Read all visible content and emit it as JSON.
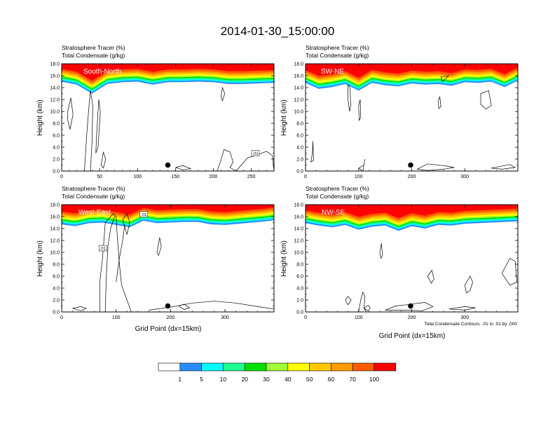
{
  "title": "2014-01-30_15:00:00",
  "colors": {
    "band_red": "#ff0000",
    "band_orange": "#ff5a00",
    "band_amber": "#ff9a00",
    "band_gold": "#ffc800",
    "band_yellow": "#ffff00",
    "band_lime": "#a0ff30",
    "band_green": "#00e000",
    "band_teal": "#20ff90",
    "band_cyan": "#00ffff",
    "band_blue": "#2a8cff",
    "contour": "#000000"
  },
  "colorbar": {
    "colors": [
      "#ffffff",
      "#2a8cff",
      "#00ffff",
      "#20ff90",
      "#00e000",
      "#a0ff30",
      "#ffff00",
      "#ffc800",
      "#ff9a00",
      "#ff5a00",
      "#ff0000"
    ],
    "labels": [
      "1",
      "5",
      "10",
      "20",
      "30",
      "40",
      "50",
      "60",
      "70",
      "100"
    ]
  },
  "footnote": "Total Condensate Contours: .01 to .01 by .000",
  "panels": [
    {
      "tracer_label": "Stratosphere Tracer   (%)",
      "condensate_label": "Total Condensate   (g/kg)",
      "section_label": "South-North",
      "ylabel": "Height (km)",
      "xlabel": "",
      "yticks": [
        "0.0",
        "2.0",
        "4.0",
        "6.0",
        "8.0",
        "10.0",
        "12.0",
        "14.0",
        "16.0",
        "18.0"
      ],
      "xticks": [
        "0",
        "50",
        "100",
        "150",
        "200",
        "250"
      ],
      "contour_labels": [
        ".01"
      ]
    },
    {
      "tracer_label": "Stratosphere Tracer   (%)",
      "condensate_label": "Total Condensate   (g/kg)",
      "section_label": "SW-NE",
      "ylabel": "Height (km)",
      "xlabel": "",
      "yticks": [
        "0.0",
        "2.0",
        "4.0",
        "6.0",
        "8.0",
        "10.0",
        "12.0",
        "14.0",
        "16.0",
        "18.0"
      ],
      "xticks": [
        "0",
        "100",
        "200",
        "300"
      ],
      "contour_labels": []
    },
    {
      "tracer_label": "Stratosphere Tracer   (%)",
      "condensate_label": "Total Condensate   (g/kg)",
      "section_label": "West-East",
      "ylabel": "Height (km)",
      "xlabel": "Grid Point (dx=15km)",
      "yticks": [
        "0.0",
        "2.0",
        "4.0",
        "6.0",
        "8.0",
        "10.0",
        "12.0",
        "14.0",
        "16.0",
        "18.0"
      ],
      "xticks": [
        "0",
        "100",
        "200",
        "300"
      ],
      "contour_labels": [
        ".01",
        ".01"
      ]
    },
    {
      "tracer_label": "Stratosphere Tracer   (%)",
      "condensate_label": "Total Condensate   (g/kg)",
      "section_label": "NW-SE",
      "ylabel": "Height (km)",
      "xlabel": "Grid Point (dx=15km)",
      "yticks": [
        "0.0",
        "2.0",
        "4.0",
        "6.0",
        "8.0",
        "10.0",
        "12.0",
        "14.0",
        "16.0",
        "18.0"
      ],
      "xticks": [
        "0",
        "100",
        "200",
        "300"
      ],
      "contour_labels": []
    }
  ],
  "chart_data": [
    {
      "type": "heatmap",
      "title": "South-North",
      "xlabel": "",
      "ylabel": "Height (km)",
      "xlim": [
        0,
        280
      ],
      "ylim": [
        0,
        18
      ],
      "x_ticks": [
        0,
        50,
        100,
        150,
        200,
        250
      ],
      "y_ticks": [
        0,
        2,
        4,
        6,
        8,
        10,
        12,
        14,
        16,
        18
      ],
      "x": [
        0,
        20,
        40,
        60,
        80,
        100,
        120,
        140,
        160,
        180,
        200,
        220,
        240,
        260,
        280
      ],
      "tracer_front_km": [
        15.0,
        14.5,
        13.0,
        14.6,
        14.9,
        15.0,
        14.5,
        14.9,
        14.9,
        15.0,
        14.9,
        14.6,
        14.6,
        14.7,
        14.8
      ],
      "levels": [
        1,
        5,
        10,
        20,
        30,
        40,
        50,
        60,
        70,
        100
      ],
      "marker": {
        "x": 140,
        "y": 1.0
      }
    },
    {
      "type": "heatmap",
      "title": "SW-NE",
      "xlabel": "",
      "ylabel": "Height (km)",
      "xlim": [
        0,
        400
      ],
      "ylim": [
        0,
        18
      ],
      "x_ticks": [
        0,
        100,
        200,
        300
      ],
      "y_ticks": [
        0,
        2,
        4,
        6,
        8,
        10,
        12,
        14,
        16,
        18
      ],
      "x": [
        0,
        25,
        50,
        75,
        100,
        125,
        150,
        175,
        200,
        225,
        250,
        275,
        300,
        325,
        350,
        375,
        400
      ],
      "tracer_front_km": [
        14.8,
        13.8,
        14.1,
        14.6,
        13.5,
        14.8,
        14.4,
        14.2,
        14.7,
        14.5,
        14.6,
        14.3,
        14.9,
        14.8,
        15.0,
        14.1,
        15.2
      ],
      "levels": [
        1,
        5,
        10,
        20,
        30,
        40,
        50,
        60,
        70,
        100
      ],
      "marker": {
        "x": 198,
        "y": 1.0
      }
    },
    {
      "type": "heatmap",
      "title": "West-East",
      "xlabel": "Grid Point (dx=15km)",
      "ylabel": "Height (km)",
      "xlim": [
        0,
        390
      ],
      "ylim": [
        0,
        18
      ],
      "x_ticks": [
        0,
        100,
        200,
        300
      ],
      "y_ticks": [
        0,
        2,
        4,
        6,
        8,
        10,
        12,
        14,
        16,
        18
      ],
      "x": [
        0,
        25,
        50,
        75,
        100,
        125,
        150,
        175,
        200,
        225,
        250,
        275,
        300,
        325,
        350,
        375,
        390
      ],
      "tracer_front_km": [
        14.7,
        14.4,
        14.9,
        15.0,
        14.6,
        14.2,
        15.3,
        14.9,
        15.0,
        15.1,
        15.1,
        14.7,
        14.6,
        14.8,
        15.0,
        15.2,
        15.4
      ],
      "levels": [
        1,
        5,
        10,
        20,
        30,
        40,
        50,
        60,
        70,
        100
      ],
      "marker": {
        "x": 195,
        "y": 1.0
      }
    },
    {
      "type": "heatmap",
      "title": "NW-SE",
      "xlabel": "Grid Point (dx=15km)",
      "ylabel": "Height (km)",
      "xlim": [
        0,
        400
      ],
      "ylim": [
        0,
        18
      ],
      "x_ticks": [
        0,
        100,
        200,
        300
      ],
      "y_ticks": [
        0,
        2,
        4,
        6,
        8,
        10,
        12,
        14,
        16,
        18
      ],
      "x": [
        0,
        25,
        50,
        75,
        100,
        125,
        150,
        175,
        200,
        225,
        250,
        275,
        300,
        325,
        350,
        375,
        400
      ],
      "tracer_front_km": [
        14.9,
        14.5,
        14.2,
        14.6,
        13.8,
        14.3,
        14.5,
        13.6,
        14.4,
        14.0,
        14.6,
        14.5,
        14.8,
        14.9,
        15.0,
        15.1,
        15.2
      ],
      "levels": [
        1,
        5,
        10,
        20,
        30,
        40,
        50,
        60,
        70,
        100
      ],
      "marker": {
        "x": 198,
        "y": 1.0
      }
    }
  ]
}
